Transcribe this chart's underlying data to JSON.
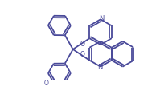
{
  "bg_color": "#ffffff",
  "line_color": "#4a4a9a",
  "line_width": 1.3,
  "figsize": [
    1.94,
    1.08
  ],
  "dpi": 100,
  "xlim": [
    0,
    194
  ],
  "ylim": [
    0,
    108
  ]
}
